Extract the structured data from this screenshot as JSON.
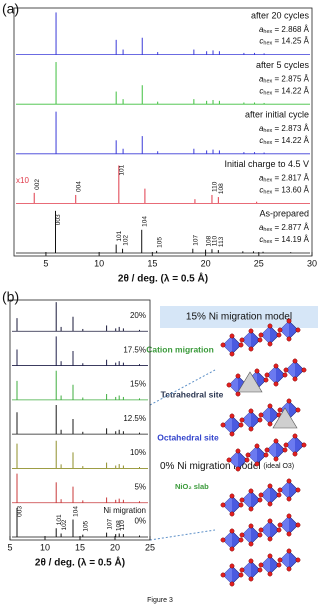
{
  "chart_data": [
    {
      "type": "stem",
      "panel": "(a)",
      "x_label": "2θ / deg. (λ = 0.5 Å)",
      "xlim": [
        2,
        30
      ],
      "xticks": [
        5,
        10,
        15,
        20,
        25,
        30
      ],
      "series": [
        {
          "name": "after 20 cycles",
          "color": "#3a3ad8",
          "x": [
            5.95,
            11.6,
            12.25,
            14.05,
            15.5,
            18.9,
            20.1,
            20.7,
            21.3,
            23.6,
            24.6,
            25.5
          ],
          "values": [
            100,
            35,
            12,
            40,
            6,
            12,
            8,
            10,
            8,
            4,
            4,
            3
          ],
          "lattice": [
            {
              "symbol": "a",
              "subscript": "hex",
              "text": " = 2.868 Å"
            },
            {
              "symbol": "c",
              "subscript": "hex",
              "text": " = 14.25 Å"
            }
          ]
        },
        {
          "name": "after 5 cycles",
          "color": "#3fbf3f",
          "x": [
            5.95,
            11.6,
            12.25,
            14.05,
            15.5,
            18.9,
            20.1,
            20.7,
            21.3,
            23.6,
            24.6,
            25.5
          ],
          "values": [
            100,
            30,
            12,
            45,
            6,
            12,
            8,
            10,
            8,
            4,
            4,
            3
          ],
          "lattice": [
            {
              "symbol": "a",
              "subscript": "hex",
              "text": " = 2.875 Å"
            },
            {
              "symbol": "c",
              "subscript": "hex",
              "text": " = 14.22 Å"
            }
          ]
        },
        {
          "name": "after initial cycle",
          "color": "#3a3ad8",
          "x": [
            5.95,
            11.6,
            12.25,
            14.05,
            15.5,
            18.9,
            20.1,
            20.7,
            21.3,
            23.6,
            24.6,
            25.5
          ],
          "values": [
            100,
            32,
            12,
            42,
            6,
            12,
            8,
            10,
            8,
            4,
            4,
            3
          ],
          "lattice": [
            {
              "symbol": "a",
              "subscript": "hex",
              "text": " = 2.873 Å"
            },
            {
              "symbol": "c",
              "subscript": "hex",
              "text": " = 14.22 Å"
            }
          ]
        },
        {
          "name": "Initial charge to 4.5 V",
          "color": "#e03a4a",
          "note": "x10",
          "x": [
            3.9,
            7.8,
            11.85,
            14.3,
            19.0,
            20.6,
            21.2,
            24.8
          ],
          "values": [
            25,
            20,
            90,
            35,
            10,
            20,
            15,
            4
          ],
          "peak_labels": [
            "002",
            "004",
            "101",
            null,
            null,
            "110",
            "108",
            null
          ],
          "lattice": [
            {
              "symbol": "a",
              "subscript": "hex",
              "text": " = 2.817 Å"
            },
            {
              "symbol": "c",
              "subscript": "hex",
              "text": " = 13.60 Å"
            }
          ]
        },
        {
          "name": "As-prepared",
          "color": "#111111",
          "x": [
            5.9,
            11.6,
            12.2,
            14.0,
            15.4,
            18.8,
            20.0,
            20.6,
            21.2,
            23.5,
            24.5,
            25.4,
            28.0
          ],
          "values": [
            100,
            20,
            10,
            55,
            5,
            10,
            8,
            9,
            7,
            4,
            4,
            3,
            2
          ],
          "peak_labels": [
            "003",
            "101",
            "102",
            "104",
            "105",
            "107",
            "108",
            "110",
            "113",
            null,
            null,
            null,
            null
          ],
          "lattice": [
            {
              "symbol": "a",
              "subscript": "hex",
              "text": " = 2.877 Å"
            },
            {
              "symbol": "c",
              "subscript": "hex",
              "text": " = 14.19 Å"
            }
          ]
        }
      ]
    },
    {
      "type": "stem",
      "panel": "(b)",
      "x_label": "2θ / deg. (λ = 0.5 Å)",
      "xlim": [
        5,
        25
      ],
      "xticks": [
        5,
        10,
        15,
        20,
        25
      ],
      "annotation": "Ni migration",
      "series": [
        {
          "name": "20%",
          "color": "#1a1a3a",
          "x": [
            6.0,
            11.6,
            12.3,
            14.0,
            15.4,
            18.8,
            20.1,
            20.6,
            21.2,
            23.5
          ],
          "values": [
            45,
            100,
            15,
            50,
            8,
            20,
            10,
            15,
            10,
            5
          ]
        },
        {
          "name": "17.5%",
          "color": "#20204a",
          "x": [
            6.0,
            11.6,
            12.3,
            14.0,
            15.4,
            18.8,
            20.1,
            20.6,
            21.2,
            23.5
          ],
          "values": [
            55,
            100,
            15,
            50,
            8,
            20,
            10,
            15,
            10,
            5
          ]
        },
        {
          "name": "15%",
          "color": "#3fae3f",
          "x": [
            6.0,
            11.6,
            12.3,
            14.0,
            15.4,
            18.8,
            20.1,
            20.6,
            21.2,
            23.5
          ],
          "values": [
            65,
            100,
            15,
            52,
            8,
            20,
            10,
            15,
            10,
            5
          ]
        },
        {
          "name": "12.5%",
          "color": "#1a1a1a",
          "x": [
            6.0,
            11.6,
            12.3,
            14.0,
            15.4,
            18.8,
            20.1,
            20.6,
            21.2,
            23.5
          ],
          "values": [
            75,
            100,
            15,
            52,
            8,
            20,
            10,
            15,
            10,
            5
          ]
        },
        {
          "name": "10%",
          "color": "#8f8f2a",
          "x": [
            6.0,
            11.6,
            12.3,
            14.0,
            15.4,
            18.8,
            20.1,
            20.6,
            21.2,
            23.5
          ],
          "values": [
            85,
            95,
            14,
            55,
            8,
            20,
            10,
            15,
            10,
            5
          ]
        },
        {
          "name": "5%",
          "color": "#c8383a",
          "x": [
            6.0,
            11.6,
            12.3,
            14.0,
            15.4,
            18.8,
            20.1,
            20.6,
            21.2,
            23.5
          ],
          "values": [
            100,
            70,
            12,
            55,
            8,
            18,
            10,
            14,
            10,
            5
          ]
        },
        {
          "name": "0%",
          "color": "#111111",
          "x": [
            6.0,
            11.6,
            12.3,
            14.0,
            15.4,
            18.8,
            20.1,
            20.6,
            21.2,
            23.5
          ],
          "values": [
            100,
            30,
            12,
            60,
            8,
            15,
            10,
            12,
            10,
            5
          ],
          "peak_labels": [
            "003",
            "101",
            "102",
            "104",
            "105",
            "107",
            "108",
            "110",
            null,
            null
          ]
        }
      ]
    }
  ],
  "model": {
    "top_title": "15% Ni migration model",
    "cation": "Cation migration",
    "tetra": "Tetrahedral site",
    "octa": "Octahedral site",
    "bottom_title": "0% Ni migration model",
    "bottom_note": "(ideal O3)",
    "slab": "NiO₂ slab"
  },
  "caption": "Figure 3"
}
